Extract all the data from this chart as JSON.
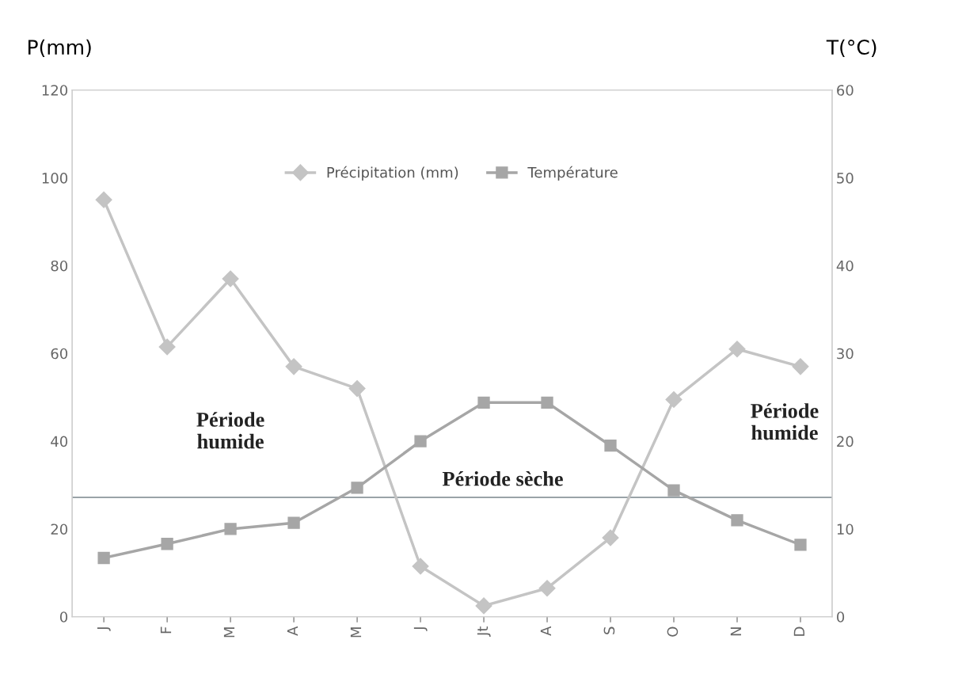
{
  "chart_data": {
    "type": "line",
    "categories": [
      "J",
      "F",
      "M",
      "A",
      "M",
      "J",
      "Jt",
      "A",
      "S",
      "O",
      "N",
      "D"
    ],
    "ylabel": "P(mm)",
    "y2label": "T(°C)",
    "ylim": [
      0,
      120
    ],
    "yticks": [
      0,
      20,
      40,
      60,
      80,
      100,
      120
    ],
    "y2lim": [
      0,
      60
    ],
    "y2ticks": [
      0,
      10,
      20,
      30,
      40,
      50,
      60
    ],
    "series": [
      {
        "name": "Précipitation (mm)",
        "color": "#c4c4c4",
        "marker": "diamond",
        "values": [
          95,
          61.5,
          77,
          57,
          52,
          11.5,
          2.5,
          6.5,
          18,
          49.5,
          61,
          57
        ]
      },
      {
        "name": "Température",
        "color": "#a6a6a6",
        "marker": "square",
        "axis": "y2",
        "values": [
          6.7,
          8.3,
          10,
          10.7,
          14.7,
          20,
          24.4,
          24.4,
          19.5,
          14.4,
          11,
          8.2
        ]
      }
    ],
    "ref_lines": [
      {
        "axis": "y",
        "value": 27.2,
        "color": "#9aa3a8",
        "line_style": "solid"
      }
    ],
    "annotations": [
      "Période\nhumide",
      "Période sèche",
      "Période\nhumide"
    ],
    "legend": "top",
    "grid": false
  }
}
